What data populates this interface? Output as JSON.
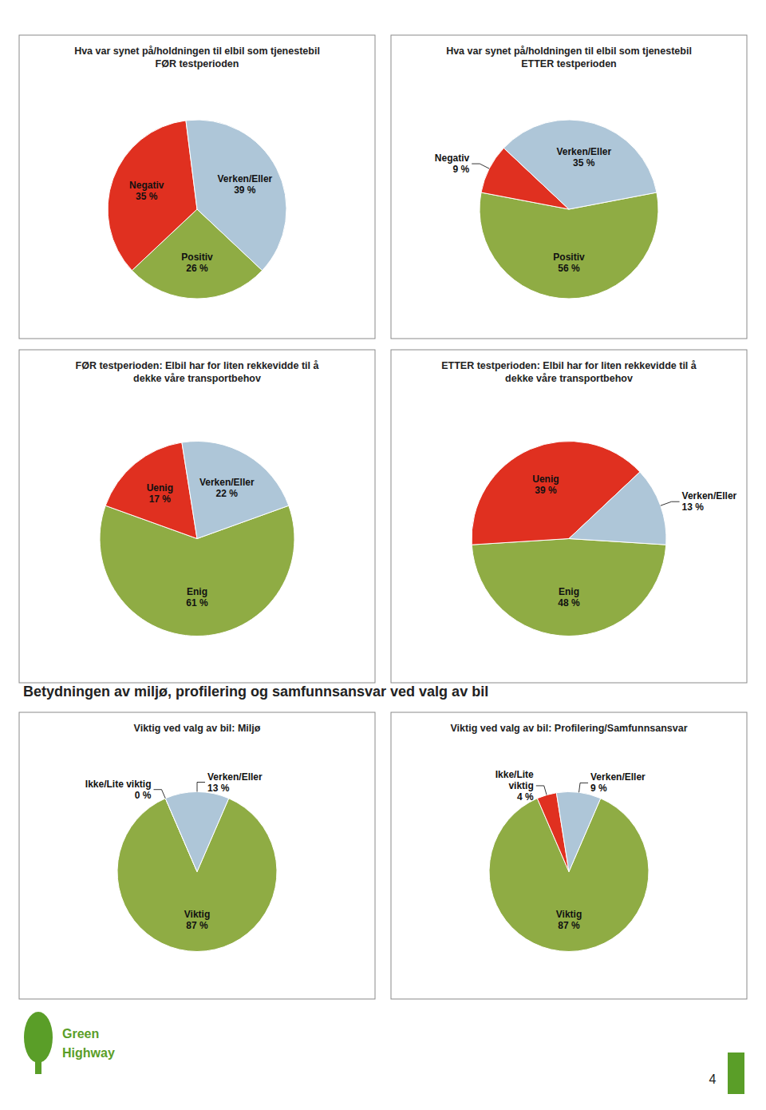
{
  "chart_data": [
    {
      "type": "pie",
      "title": "Hva var synet på/holdningen til elbil som tjenestebil\nFØR testperioden",
      "categories": [
        "Positiv",
        "Negativ",
        "Verken/Eller"
      ],
      "values": [
        26,
        35,
        39
      ],
      "value_labels": [
        "26 %",
        "35 %",
        "39 %"
      ],
      "colors": [
        "#8fac44",
        "#e03020",
        "#aec6d8"
      ],
      "data_labels": true
    },
    {
      "type": "pie",
      "title": "Hva var synet på/holdningen til elbil som tjenestebil\nETTER testperioden",
      "categories": [
        "Positiv",
        "Negativ",
        "Verken/Eller"
      ],
      "values": [
        56,
        9,
        35
      ],
      "value_labels": [
        "56 %",
        "9 %",
        "35 %"
      ],
      "colors": [
        "#8fac44",
        "#e03020",
        "#aec6d8"
      ],
      "data_labels": true
    },
    {
      "type": "pie",
      "title": "FØR testperioden: Elbil har for liten rekkevidde til å\ndekke våre transportbehov",
      "categories": [
        "Enig",
        "Uenig",
        "Verken/Eller"
      ],
      "values": [
        61,
        17,
        22
      ],
      "value_labels": [
        "61 %",
        "17 %",
        "22 %"
      ],
      "colors": [
        "#8fac44",
        "#e03020",
        "#aec6d8"
      ],
      "data_labels": true
    },
    {
      "type": "pie",
      "title": "ETTER testperioden: Elbil har for liten rekkevidde til å\ndekke våre transportbehov",
      "categories": [
        "Enig",
        "Uenig",
        "Verken/Eller"
      ],
      "values": [
        48,
        39,
        13
      ],
      "value_labels": [
        "48 %",
        "39 %",
        "13 %"
      ],
      "colors": [
        "#8fac44",
        "#e03020",
        "#aec6d8"
      ],
      "data_labels": true
    },
    {
      "type": "pie",
      "title": "Viktig ved valg av bil: Miljø",
      "categories": [
        "Viktig",
        "Ikke/Lite viktig",
        "Verken/Eller"
      ],
      "values": [
        87,
        0.001,
        13
      ],
      "value_labels": [
        "87 %",
        "0 %",
        "13 %"
      ],
      "colors": [
        "#8fac44",
        "#e03020",
        "#aec6d8"
      ],
      "data_labels": true
    },
    {
      "type": "pie",
      "title": "Viktig ved valg av bil: Profilering/Samfunnsansvar",
      "categories": [
        "Viktig",
        "Ikke/Lite\nviktig",
        "Verken/Eller"
      ],
      "values": [
        87,
        4,
        9
      ],
      "value_labels": [
        "87 %",
        "4 %",
        "9 %"
      ],
      "colors": [
        "#8fac44",
        "#e03020",
        "#aec6d8"
      ],
      "data_labels": true
    }
  ],
  "section_title": "Betydningen av miljø, profilering og samfunnsansvar ved valg av bil",
  "logo": {
    "texts": [
      "Green",
      "Highway"
    ],
    "color": "#5a9e28"
  },
  "page_number": "4"
}
